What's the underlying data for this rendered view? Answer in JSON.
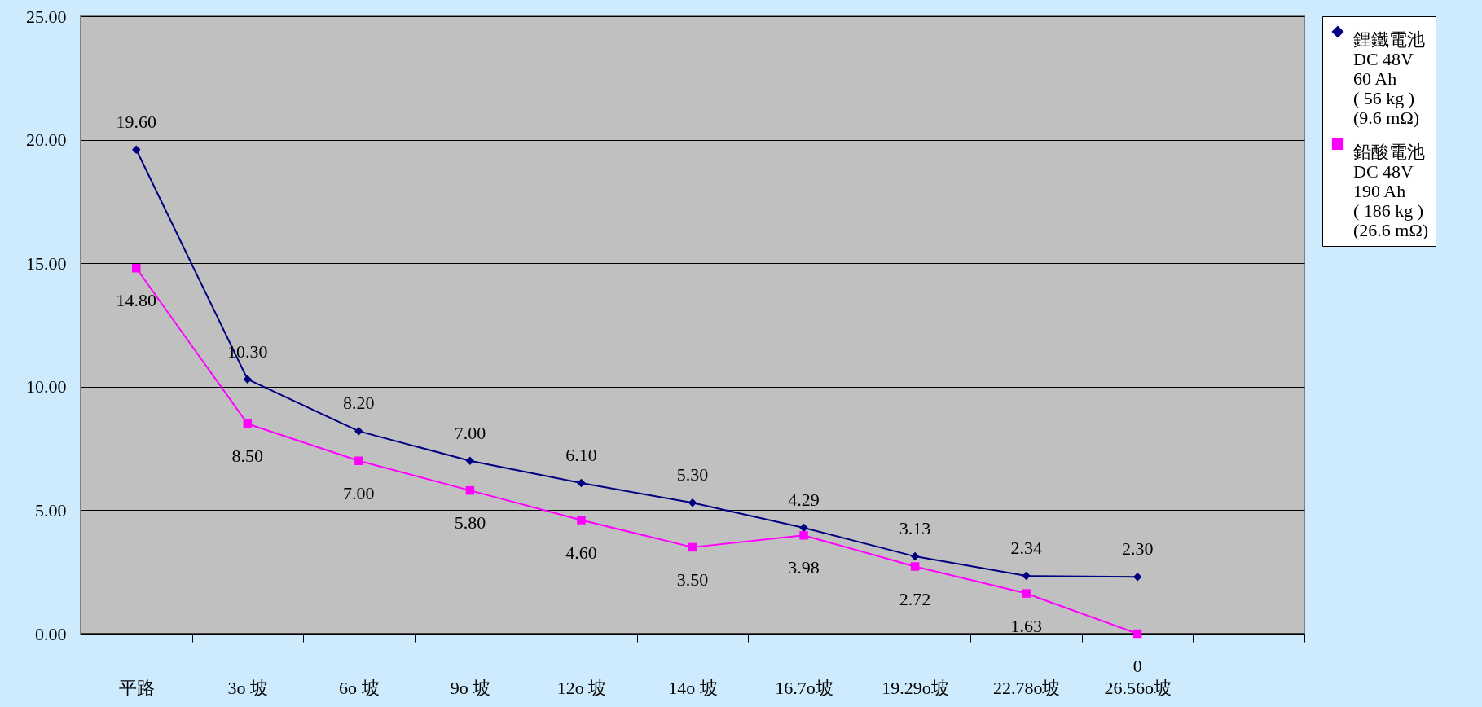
{
  "chart_data": {
    "type": "line",
    "categories": [
      "平路",
      "3o 坡",
      "6o 坡",
      "9o 坡",
      "12o 坡",
      "14o 坡",
      "16.7o坡",
      "19.29o坡",
      "22.78o坡",
      "26.56o坡",
      null
    ],
    "series": [
      {
        "name": "鋰鐵電池\nDC 48V\n60 Ah\n( 56 kg )\n(9.6 mΩ)",
        "color": "#000080",
        "marker": "diamond",
        "values": [
          19.6,
          10.3,
          8.2,
          7.0,
          6.1,
          5.3,
          4.29,
          3.13,
          2.34,
          2.3,
          null
        ],
        "value_labels": [
          "19.60",
          "10.30",
          "8.20",
          "7.00",
          "6.10",
          "5.30",
          "4.29",
          "3.13",
          "2.34",
          "2.30",
          null
        ]
      },
      {
        "name": "鉛酸電池\nDC 48V\n190 Ah\n( 186 kg )\n(26.6 mΩ)",
        "color": "#ff00ff",
        "marker": "square",
        "values": [
          14.8,
          8.5,
          7.0,
          5.8,
          4.6,
          3.5,
          3.98,
          2.72,
          1.63,
          0,
          null
        ],
        "value_labels": [
          "14.80",
          "8.50",
          "7.00",
          "5.80",
          "4.60",
          "3.50",
          "3.98",
          "2.72",
          "1.63",
          "0",
          null
        ]
      }
    ],
    "ylim": [
      0,
      25
    ],
    "yticks": [
      {
        "value": 0,
        "label": "0.00"
      },
      {
        "value": 5,
        "label": "5.00"
      },
      {
        "value": 10,
        "label": "10.00"
      },
      {
        "value": 15,
        "label": "15.00"
      },
      {
        "value": 20,
        "label": "20.00"
      },
      {
        "value": 25,
        "label": "25.00"
      }
    ],
    "grid": "y",
    "legend": "right",
    "line_style": "solid"
  }
}
